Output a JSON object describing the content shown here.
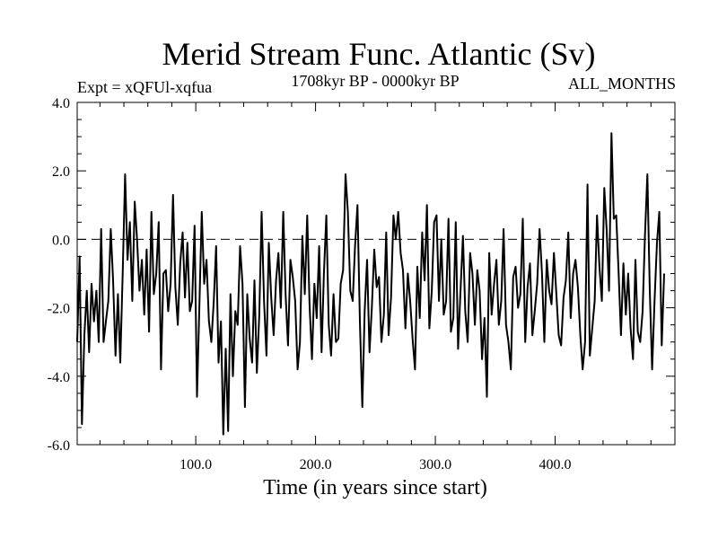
{
  "chart_data": {
    "type": "line",
    "title": "Merid Stream Func. Atlantic (Sv)",
    "subtitle_left": "Expt = xQFUl-xqfua",
    "subtitle_center": "1708kyr BP - 0000kyr BP",
    "subtitle_right": "ALL_MONTHS",
    "xlabel": "Time (in years since start)",
    "ylabel": "",
    "xlim": [
      1,
      500
    ],
    "ylim": [
      -6.0,
      4.0
    ],
    "x_ticks": [
      100,
      200,
      300,
      400
    ],
    "x_tick_labels": [
      "100.0",
      "200.0",
      "300.0",
      "400.0"
    ],
    "y_ticks": [
      -6,
      -4,
      -2,
      0,
      2,
      4
    ],
    "y_tick_labels": [
      "-6.0",
      "-4.0",
      "-2.0",
      "0.0",
      "2.0",
      "4.0"
    ],
    "reference_line": {
      "y": 0.0,
      "style": "dashed"
    },
    "series": [
      {
        "name": "Merid Stream Func. Atlantic",
        "x_start": 1,
        "x_step": 2,
        "values": [
          -3.0,
          -0.5,
          -5.4,
          -2.8,
          -1.5,
          -3.3,
          -1.3,
          -2.4,
          -1.5,
          -3.0,
          0.3,
          -3.0,
          -2.4,
          -1.8,
          0.3,
          -1.2,
          -3.4,
          -1.6,
          -3.6,
          -1.0,
          1.9,
          -0.6,
          0.5,
          -1.8,
          1.1,
          0.0,
          -1.5,
          -0.6,
          -2.2,
          -0.3,
          -2.7,
          0.8,
          -1.6,
          -1.0,
          0.5,
          -3.8,
          -1.0,
          -0.9,
          -2.1,
          -1.3,
          1.3,
          -1.4,
          -2.5,
          -0.7,
          0.2,
          -1.7,
          -0.1,
          -2.1,
          -1.8,
          0.4,
          -4.6,
          -2.0,
          0.8,
          -1.3,
          -0.6,
          -2.4,
          -3.0,
          -1.8,
          -0.2,
          -3.6,
          -2.4,
          -5.7,
          -3.2,
          -5.6,
          -1.6,
          -4.0,
          -2.1,
          -2.5,
          -0.2,
          -1.3,
          -4.9,
          -1.6,
          -2.9,
          -3.6,
          -1.2,
          -3.9,
          -2.2,
          0.8,
          -1.8,
          -3.4,
          -0.1,
          -1.7,
          -2.8,
          -1.2,
          -0.4,
          -2.0,
          0.8,
          -1.6,
          -3.1,
          -0.6,
          -1.1,
          -1.8,
          -3.8,
          -3.0,
          0.1,
          -1.6,
          0.7,
          -1.9,
          -3.5,
          -1.3,
          -2.3,
          -0.2,
          -3.3,
          -1.0,
          0.7,
          -2.5,
          -3.4,
          -1.6,
          -3.0,
          -2.9,
          -1.3,
          -0.9,
          1.9,
          0.8,
          -1.5,
          -1.8,
          -0.2,
          1.0,
          -2.4,
          -4.9,
          -2.1,
          -0.6,
          -3.3,
          -2.0,
          -0.3,
          -1.4,
          -1.1,
          -3.0,
          -2.2,
          0.2,
          -2.8,
          -1.7,
          0.7,
          0.0,
          0.8,
          -0.4,
          -0.9,
          -2.6,
          -1.0,
          -1.8,
          -2.9,
          -3.8,
          -0.8,
          -2.3,
          0.2,
          -1.2,
          1.0,
          -2.6,
          -1.5,
          0.5,
          0.7,
          -1.8,
          0.0,
          -2.2,
          -1.8,
          0.6,
          -2.7,
          -2.3,
          0.5,
          -3.2,
          -1.5,
          0.1,
          -2.1,
          -3.0,
          -0.4,
          -1.0,
          -2.5,
          -0.9,
          -1.5,
          -3.5,
          -2.3,
          -4.6,
          -0.4,
          -2.2,
          -1.3,
          -0.6,
          -2.5,
          -1.8,
          0.3,
          -2.5,
          -3.0,
          -3.8,
          -1.1,
          -0.8,
          -2.0,
          -1.6,
          0.6,
          -3.0,
          -1.4,
          -0.7,
          -2.8,
          -2.1,
          -1.3,
          0.3,
          -1.0,
          -3.0,
          -0.6,
          -1.5,
          -1.9,
          -0.4,
          -1.6,
          -2.8,
          -3.1,
          -1.7,
          -1.2,
          0.2,
          -2.3,
          -1.0,
          -0.6,
          -1.4,
          -2.8,
          -3.8,
          -3.0,
          1.6,
          -3.4,
          -2.6,
          -1.8,
          0.7,
          -0.8,
          -1.8,
          1.5,
          0.3,
          -1.5,
          3.1,
          0.6,
          0.7,
          -1.0,
          -2.8,
          -0.7,
          -2.2,
          -1.0,
          -2.6,
          -3.5,
          -0.6,
          -2.7,
          -3.0,
          -2.1,
          0.1,
          1.9,
          -1.5,
          -3.8,
          -1.8,
          -0.1,
          0.8,
          -3.1,
          -1.0
        ]
      }
    ]
  }
}
